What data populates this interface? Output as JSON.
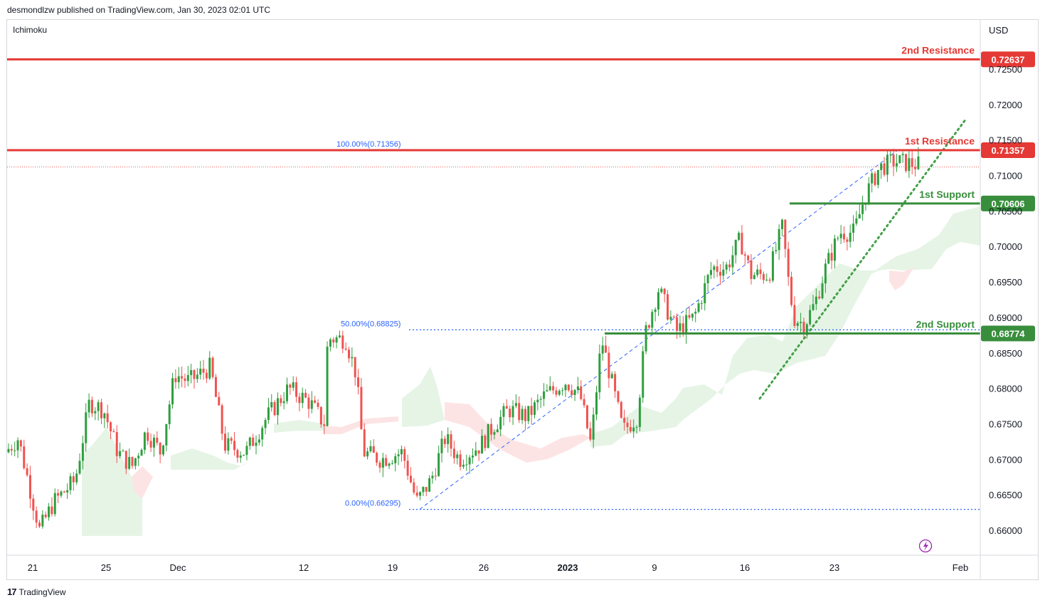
{
  "header": {
    "published_by": "desmondlzw published on TradingView.com, Jan 30, 2023 02:01 UTC"
  },
  "footer": {
    "brand": "TradingView"
  },
  "colors": {
    "up": "#26a69a",
    "up_chart": "#2e9e3e",
    "down": "#ef5350",
    "resistance": "#e53935",
    "support": "#388e3c",
    "fib": "#2962ff",
    "cloud_green": "#e6f4e6",
    "cloud_red": "#fde4e4"
  },
  "chart_data": {
    "type": "candlestick",
    "symbol_pair_currency": "USD",
    "indicator": "Ichimoku",
    "ylim": [
      0.6555,
      0.7285
    ],
    "y_ticks": [
      0.66,
      0.665,
      0.67,
      0.675,
      0.68,
      0.685,
      0.69,
      0.695,
      0.7,
      0.705,
      0.71,
      0.715,
      0.72,
      0.725
    ],
    "y_tick_labels": [
      "0.66000",
      "0.66500",
      "0.67000",
      "0.67500",
      "0.68000",
      "0.68500",
      "0.69000",
      "0.69500",
      "0.70000",
      "0.70500",
      "0.71000",
      "0.71500",
      "0.72000",
      "0.72500"
    ],
    "x_labels": [
      "21",
      "25",
      "Dec",
      "12",
      "19",
      "26",
      "2023",
      "9",
      "16",
      "23",
      "Feb"
    ],
    "levels": [
      {
        "name": "2nd Resistance",
        "value": 0.72637,
        "label": "0.72637",
        "kind": "resistance"
      },
      {
        "name": "1st Resistance",
        "value": 0.71357,
        "label": "0.71357",
        "kind": "resistance"
      },
      {
        "name": "1st Support",
        "value": 0.70606,
        "label": "0.70606",
        "kind": "support"
      },
      {
        "name": "2nd Support",
        "value": 0.68774,
        "label": "0.68774",
        "kind": "support"
      }
    ],
    "fibonacci": [
      {
        "label": "100.00%(0.71356)",
        "value": 0.71356
      },
      {
        "label": "50.00%(0.68825)",
        "value": 0.68825
      },
      {
        "label": "0.00%(0.66295)",
        "value": 0.66295
      }
    ],
    "current_price": 0.7112
  }
}
